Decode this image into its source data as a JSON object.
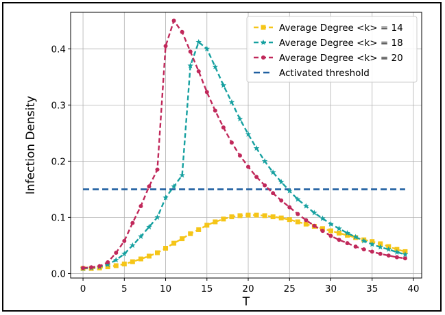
{
  "chart_data": {
    "type": "line",
    "title": "",
    "xlabel": "T",
    "ylabel": "Infection Density",
    "xlim": [
      -1.5,
      41
    ],
    "ylim": [
      -0.008,
      0.465
    ],
    "xticks": [
      0,
      5,
      10,
      15,
      20,
      25,
      30,
      35,
      40
    ],
    "yticks": [
      0.0,
      0.1,
      0.2,
      0.3,
      0.4
    ],
    "ytick_labels": [
      "0.0",
      "0.1",
      "0.2",
      "0.3",
      "0.4"
    ],
    "grid": true,
    "legend_position": "top-right",
    "x": [
      0,
      1,
      2,
      3,
      4,
      5,
      6,
      7,
      8,
      9,
      10,
      11,
      12,
      13,
      14,
      15,
      16,
      17,
      18,
      19,
      20,
      21,
      22,
      23,
      24,
      25,
      26,
      27,
      28,
      29,
      30,
      31,
      32,
      33,
      34,
      35,
      36,
      37,
      38,
      39
    ],
    "series": [
      {
        "name": "Average Degree <k> = 14",
        "color": "#f5c518",
        "marker": "square",
        "style": "dashed",
        "values": [
          0.009,
          0.009,
          0.01,
          0.012,
          0.014,
          0.017,
          0.021,
          0.026,
          0.031,
          0.037,
          0.045,
          0.054,
          0.062,
          0.071,
          0.078,
          0.086,
          0.092,
          0.097,
          0.101,
          0.103,
          0.104,
          0.104,
          0.103,
          0.101,
          0.099,
          0.096,
          0.092,
          0.088,
          0.084,
          0.08,
          0.076,
          0.072,
          0.068,
          0.064,
          0.06,
          0.057,
          0.053,
          0.048,
          0.043,
          0.039
        ]
      },
      {
        "name": "Average Degree <k> = 18",
        "color": "#16a0a0",
        "marker": "star",
        "style": "dashed",
        "values": [
          0.009,
          0.01,
          0.012,
          0.016,
          0.024,
          0.035,
          0.05,
          0.066,
          0.083,
          0.1,
          0.135,
          0.155,
          0.175,
          0.37,
          0.412,
          0.4,
          0.368,
          0.335,
          0.305,
          0.275,
          0.248,
          0.223,
          0.2,
          0.18,
          0.163,
          0.147,
          0.132,
          0.12,
          0.108,
          0.098,
          0.088,
          0.08,
          0.072,
          0.065,
          0.058,
          0.052,
          0.047,
          0.043,
          0.038,
          0.034
        ]
      },
      {
        "name": "Average Degree <k> = 20",
        "color": "#c0285a",
        "marker": "circle",
        "style": "dashed",
        "values": [
          0.01,
          0.011,
          0.013,
          0.02,
          0.037,
          0.058,
          0.09,
          0.12,
          0.155,
          0.185,
          0.405,
          0.45,
          0.43,
          0.395,
          0.36,
          0.323,
          0.29,
          0.26,
          0.233,
          0.21,
          0.19,
          0.172,
          0.157,
          0.143,
          0.13,
          0.118,
          0.106,
          0.095,
          0.085,
          0.076,
          0.067,
          0.06,
          0.054,
          0.048,
          0.043,
          0.039,
          0.035,
          0.032,
          0.029,
          0.027
        ]
      },
      {
        "name": "Activated threshold",
        "color": "#1f5fa0",
        "marker": "none",
        "style": "dashed",
        "values": [
          0.15,
          0.15,
          0.15,
          0.15,
          0.15,
          0.15,
          0.15,
          0.15,
          0.15,
          0.15,
          0.15,
          0.15,
          0.15,
          0.15,
          0.15,
          0.15,
          0.15,
          0.15,
          0.15,
          0.15,
          0.15,
          0.15,
          0.15,
          0.15,
          0.15,
          0.15,
          0.15,
          0.15,
          0.15,
          0.15,
          0.15,
          0.15,
          0.15,
          0.15,
          0.15,
          0.15,
          0.15,
          0.15,
          0.15,
          0.15
        ]
      }
    ]
  }
}
